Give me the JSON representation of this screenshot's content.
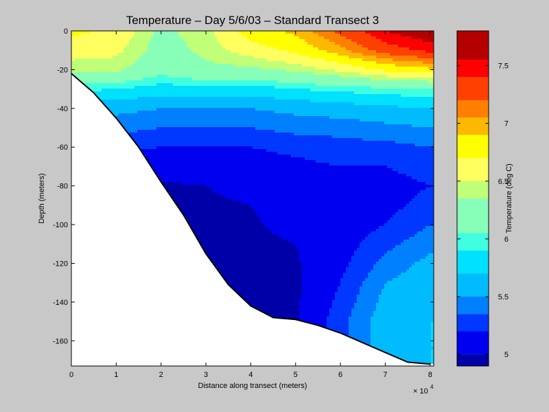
{
  "chart_data": {
    "type": "heatmap",
    "title": "Temperature – Day 5/6/03 – Standard Transect 3",
    "xlabel": "Distance along transect (meters)",
    "ylabel": "Depth (meters)",
    "x_multiplier_label": "× 10",
    "x_multiplier_exponent": "4",
    "x_ticks": [
      0,
      1,
      2,
      3,
      4,
      5,
      6,
      7,
      8
    ],
    "y_ticks": [
      0,
      -20,
      -40,
      -60,
      -80,
      -100,
      -120,
      -140,
      -160
    ],
    "xlim": [
      0,
      80800
    ],
    "ylim": [
      -173,
      0
    ],
    "colorbar": {
      "label": "Temperature (deg C)",
      "ticks": [
        5,
        5.5,
        6,
        6.5,
        7,
        7.5
      ],
      "range": [
        4.9,
        7.8
      ],
      "levels": [
        {
          "lo": 4.9,
          "hi": 5.0,
          "color": "#0000a8"
        },
        {
          "lo": 5.0,
          "hi": 5.2,
          "color": "#0000f0"
        },
        {
          "lo": 5.2,
          "hi": 5.35,
          "color": "#0038ff"
        },
        {
          "lo": 5.35,
          "hi": 5.5,
          "color": "#0080ff"
        },
        {
          "lo": 5.5,
          "hi": 5.7,
          "color": "#00bcff"
        },
        {
          "lo": 5.7,
          "hi": 5.9,
          "color": "#00e0ff"
        },
        {
          "lo": 5.9,
          "hi": 6.05,
          "color": "#40ffe0"
        },
        {
          "lo": 6.05,
          "hi": 6.35,
          "color": "#88ffb8"
        },
        {
          "lo": 6.35,
          "hi": 6.5,
          "color": "#c0ff78"
        },
        {
          "lo": 6.5,
          "hi": 6.7,
          "color": "#ffff60"
        },
        {
          "lo": 6.7,
          "hi": 6.9,
          "color": "#ffff00"
        },
        {
          "lo": 6.9,
          "hi": 7.05,
          "color": "#ffb800"
        },
        {
          "lo": 7.05,
          "hi": 7.2,
          "color": "#ff8000"
        },
        {
          "lo": 7.2,
          "hi": 7.4,
          "color": "#ff4000"
        },
        {
          "lo": 7.4,
          "hi": 7.55,
          "color": "#ff0000"
        },
        {
          "lo": 7.55,
          "hi": 7.8,
          "color": "#b40000"
        }
      ]
    },
    "bottom_profile": [
      [
        0,
        -22
      ],
      [
        5000,
        -32
      ],
      [
        10000,
        -45
      ],
      [
        15000,
        -60
      ],
      [
        20000,
        -78
      ],
      [
        25000,
        -95
      ],
      [
        30000,
        -115
      ],
      [
        35000,
        -131
      ],
      [
        40000,
        -142
      ],
      [
        45000,
        -148
      ],
      [
        50000,
        -149
      ],
      [
        55000,
        -152
      ],
      [
        60000,
        -156
      ],
      [
        65000,
        -161
      ],
      [
        70000,
        -166
      ],
      [
        75000,
        -171
      ],
      [
        80000,
        -172
      ]
    ],
    "temperature_profiles": {
      "x": [
        0,
        10000,
        20000,
        30000,
        40000,
        50000,
        60000,
        70000,
        80000
      ],
      "depth": [
        0,
        10,
        20,
        30,
        40,
        50,
        60,
        70,
        80,
        90,
        100,
        110,
        120,
        130,
        140,
        150,
        160,
        170
      ],
      "values": [
        [
          6.75,
          6.6,
          6.4,
          5.95,
          5.6,
          5.45,
          5.3,
          5.1,
          5.05,
          5.0,
          5.0,
          5.0,
          5.0,
          5.0,
          5.0,
          5.0,
          5.0,
          5.0
        ],
        [
          6.65,
          6.55,
          6.4,
          5.9,
          5.55,
          5.4,
          5.25,
          5.1,
          5.0,
          5.0,
          4.98,
          4.98,
          4.98,
          4.98,
          4.98,
          4.98,
          4.98,
          4.98
        ],
        [
          6.3,
          6.25,
          6.15,
          5.8,
          5.5,
          5.35,
          5.2,
          5.05,
          4.98,
          4.96,
          4.95,
          4.95,
          4.95,
          4.95,
          4.95,
          4.95,
          4.95,
          4.95
        ],
        [
          6.45,
          6.4,
          6.3,
          5.85,
          5.5,
          5.35,
          5.2,
          5.1,
          5.0,
          4.97,
          4.96,
          4.95,
          4.95,
          4.95,
          4.95,
          4.95,
          4.95,
          4.95
        ],
        [
          6.8,
          6.6,
          6.3,
          5.8,
          5.5,
          5.35,
          5.2,
          5.1,
          5.05,
          5.0,
          4.98,
          4.96,
          4.95,
          4.95,
          4.95,
          4.95,
          4.95,
          4.95
        ],
        [
          6.95,
          6.75,
          6.4,
          5.9,
          5.55,
          5.4,
          5.25,
          5.15,
          5.1,
          5.08,
          5.05,
          5.0,
          4.98,
          4.97,
          4.97,
          4.97,
          4.97,
          4.97
        ],
        [
          7.25,
          7.0,
          6.55,
          5.95,
          5.6,
          5.4,
          5.3,
          5.2,
          5.15,
          5.12,
          5.1,
          5.12,
          5.15,
          5.2,
          5.25,
          5.3,
          5.3,
          5.3
        ],
        [
          7.55,
          7.3,
          6.75,
          6.0,
          5.65,
          5.45,
          5.3,
          5.2,
          5.15,
          5.15,
          5.2,
          5.3,
          5.4,
          5.5,
          5.55,
          5.6,
          5.6,
          5.6
        ],
        [
          7.7,
          7.45,
          6.85,
          6.05,
          5.7,
          5.5,
          5.35,
          5.25,
          5.2,
          5.25,
          5.35,
          5.45,
          5.55,
          5.6,
          5.65,
          5.7,
          5.7,
          5.7
        ]
      ]
    }
  }
}
